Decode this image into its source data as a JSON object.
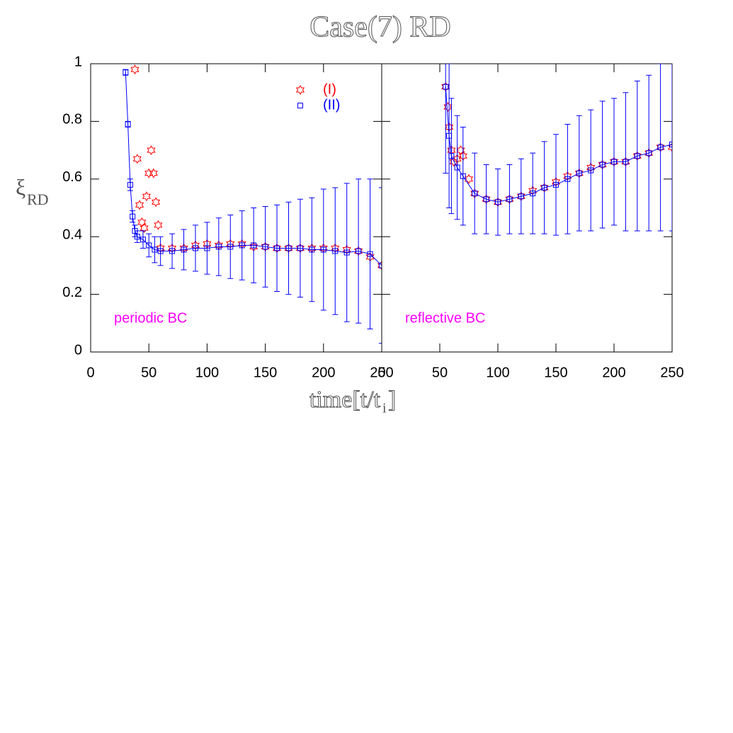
{
  "title": "Case(7) RD",
  "x_label": {
    "main": "time[t/t",
    "subscript": "i",
    "suffix": "]"
  },
  "y_label": {
    "main": "ξ",
    "subscript": "RD"
  },
  "chart_data": [
    {
      "type": "scatter",
      "annotation": "periodic BC",
      "annotation_color": "#ff00ff",
      "xlim": [
        0,
        250
      ],
      "ylim": [
        0,
        1
      ],
      "xticks": [
        0,
        50,
        100,
        150,
        200,
        250
      ],
      "yticks": [
        0,
        0.2,
        0.4,
        0.6,
        0.8,
        1
      ],
      "ytick_labels": true,
      "legend": "upper right",
      "series": [
        {
          "name": "(I)",
          "color": "#ff0000",
          "marker": "star",
          "x": [
            38,
            40,
            42,
            44,
            46,
            48,
            50,
            52,
            54,
            56,
            58,
            60,
            70,
            80,
            90,
            100,
            110,
            120,
            130,
            140,
            150,
            160,
            170,
            180,
            190,
            200,
            210,
            220,
            230,
            240,
            250
          ],
          "values": [
            0.98,
            0.67,
            0.51,
            0.45,
            0.43,
            0.54,
            0.62,
            0.7,
            0.62,
            0.52,
            0.44,
            0.36,
            0.36,
            0.36,
            0.37,
            0.375,
            0.37,
            0.375,
            0.375,
            0.365,
            0.365,
            0.36,
            0.36,
            0.36,
            0.36,
            0.36,
            0.36,
            0.355,
            0.35,
            0.33,
            0.3
          ]
        },
        {
          "name": "(II)",
          "color": "#0000ff",
          "marker": "square",
          "x": [
            30,
            32,
            34,
            36,
            38,
            40,
            45,
            50,
            55,
            60,
            70,
            80,
            90,
            100,
            110,
            120,
            130,
            140,
            150,
            160,
            170,
            180,
            190,
            200,
            210,
            220,
            230,
            240,
            250
          ],
          "values": [
            0.97,
            0.79,
            0.58,
            0.47,
            0.42,
            0.4,
            0.39,
            0.37,
            0.355,
            0.35,
            0.35,
            0.355,
            0.36,
            0.36,
            0.365,
            0.365,
            0.37,
            0.37,
            0.365,
            0.36,
            0.36,
            0.36,
            0.355,
            0.355,
            0.35,
            0.345,
            0.35,
            0.34,
            0.3
          ],
          "errors": [
            0.01,
            0.01,
            0.02,
            0.02,
            0.02,
            0.02,
            0.03,
            0.04,
            0.045,
            0.05,
            0.06,
            0.07,
            0.08,
            0.09,
            0.1,
            0.11,
            0.12,
            0.13,
            0.14,
            0.15,
            0.16,
            0.17,
            0.18,
            0.21,
            0.22,
            0.24,
            0.25,
            0.26,
            0.27
          ]
        }
      ]
    },
    {
      "type": "scatter",
      "annotation": "reflective BC",
      "annotation_color": "#ff00ff",
      "xlim": [
        0,
        250
      ],
      "ylim": [
        0,
        1
      ],
      "xticks": [
        0,
        50,
        100,
        150,
        200,
        250
      ],
      "yticks": [
        0,
        0.2,
        0.4,
        0.6,
        0.8,
        1
      ],
      "ytick_labels": false,
      "series": [
        {
          "color": "#ff0000",
          "marker": "star",
          "x": [
            55,
            57,
            58,
            60,
            62,
            65,
            68,
            70,
            75,
            80,
            90,
            100,
            110,
            120,
            130,
            140,
            150,
            160,
            170,
            180,
            190,
            200,
            210,
            220,
            230,
            240,
            250
          ],
          "values": [
            0.92,
            0.85,
            0.78,
            0.7,
            0.66,
            0.67,
            0.7,
            0.68,
            0.6,
            0.55,
            0.53,
            0.52,
            0.53,
            0.54,
            0.56,
            0.57,
            0.59,
            0.61,
            0.62,
            0.64,
            0.65,
            0.66,
            0.66,
            0.68,
            0.69,
            0.71,
            0.71
          ]
        },
        {
          "color": "#0000ff",
          "marker": "square",
          "x": [
            55,
            58,
            60,
            65,
            70,
            80,
            90,
            100,
            110,
            120,
            130,
            140,
            150,
            160,
            170,
            180,
            190,
            200,
            210,
            220,
            230,
            240,
            250
          ],
          "values": [
            0.92,
            0.75,
            0.68,
            0.64,
            0.61,
            0.55,
            0.53,
            0.52,
            0.53,
            0.54,
            0.55,
            0.57,
            0.58,
            0.6,
            0.62,
            0.63,
            0.65,
            0.66,
            0.66,
            0.68,
            0.69,
            0.71,
            0.72
          ],
          "errors": [
            0.3,
            0.25,
            0.2,
            0.18,
            0.17,
            0.14,
            0.12,
            0.115,
            0.12,
            0.13,
            0.14,
            0.16,
            0.175,
            0.19,
            0.2,
            0.21,
            0.22,
            0.22,
            0.24,
            0.26,
            0.27,
            0.29,
            0.3
          ]
        }
      ]
    }
  ]
}
